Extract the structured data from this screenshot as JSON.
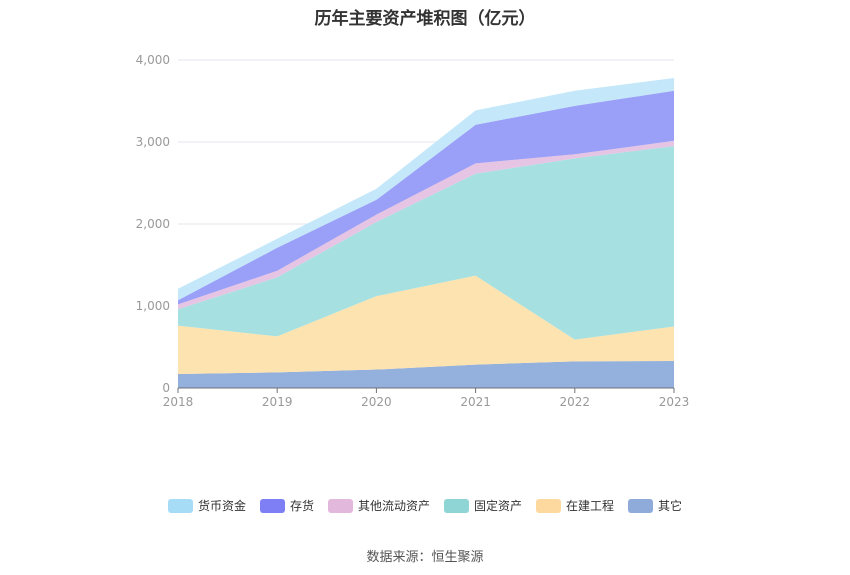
{
  "chart_data": {
    "type": "area",
    "stacked": true,
    "title": "历年主要资产堆积图（亿元）",
    "categories": [
      "2018",
      "2019",
      "2020",
      "2021",
      "2022",
      "2023"
    ],
    "ylim": [
      0,
      4000
    ],
    "yticks": [
      "0",
      "1,000",
      "2,000",
      "3,000",
      "4,000"
    ],
    "grid": true,
    "legend_position": "bottom",
    "series": [
      {
        "name": "其它",
        "color": "#94b0dc",
        "values": [
          170,
          190,
          225,
          285,
          325,
          330
        ]
      },
      {
        "name": "在建工程",
        "color": "#fde3b0",
        "values": [
          590,
          440,
          895,
          1085,
          265,
          420
        ]
      },
      {
        "name": "固定资产",
        "color": "#a7e0e0",
        "values": [
          200,
          720,
          905,
          1245,
          2210,
          2200
        ]
      },
      {
        "name": "其他流动资产",
        "color": "#e6c4e3",
        "values": [
          60,
          80,
          90,
          125,
          50,
          65
        ]
      },
      {
        "name": "存货",
        "color": "#9a9ff7",
        "values": [
          50,
          280,
          180,
          470,
          590,
          610
        ]
      },
      {
        "name": "货币资金",
        "color": "#c4e8fa",
        "values": [
          140,
          110,
          135,
          175,
          185,
          155
        ]
      }
    ]
  },
  "legend": [
    {
      "name": "货币资金",
      "color": "#a7dcf7"
    },
    {
      "name": "存货",
      "color": "#7f7ff5"
    },
    {
      "name": "其他流动资产",
      "color": "#e2b8dc"
    },
    {
      "name": "固定资产",
      "color": "#8fd5d5"
    },
    {
      "name": "在建工程",
      "color": "#fdd9a0"
    },
    {
      "name": "其它",
      "color": "#8fabda"
    }
  ],
  "source": "数据来源：恒生聚源"
}
